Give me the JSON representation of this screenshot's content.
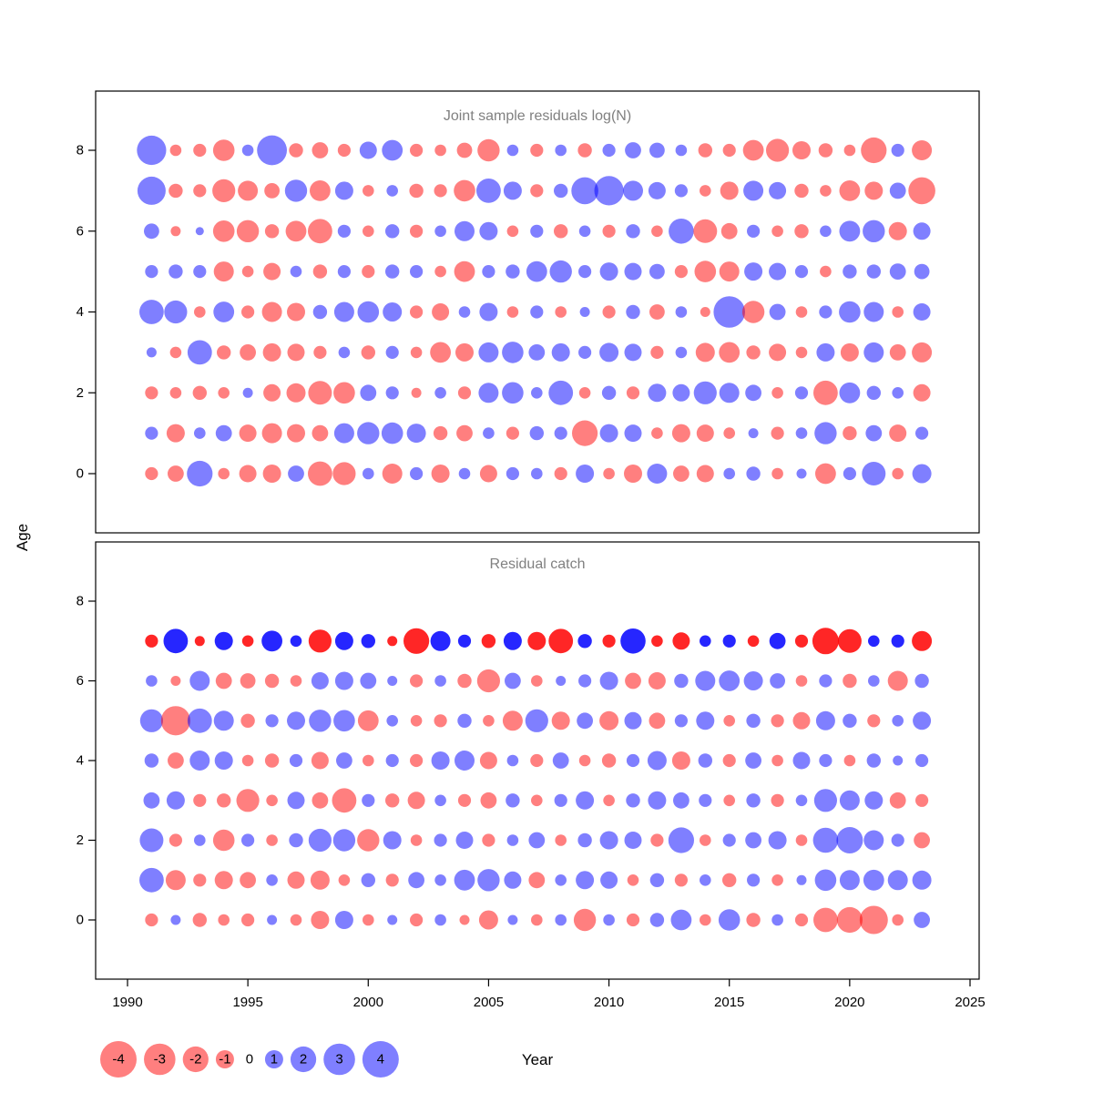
{
  "figure": {
    "background": "#ffffff",
    "axis_color": "#000000",
    "title_color": "#808080",
    "neg_color": "#ff0000",
    "pos_color": "#0000ff",
    "bubble_alpha": 0.5,
    "xlabel": "Year",
    "ylabel": "Age",
    "x_ticks": [
      1990,
      1995,
      2000,
      2005,
      2010,
      2015,
      2020,
      2025
    ],
    "y_ticks": [
      0,
      2,
      4,
      6,
      8
    ],
    "legend": {
      "values": [
        -4,
        -3,
        -2,
        -1,
        0,
        1,
        2,
        3,
        4
      ]
    }
  },
  "chart_data": [
    {
      "type": "bubble",
      "title": "Joint sample residuals log(N)",
      "xlabel": "Year",
      "ylabel": "Age",
      "xlim": [
        1989.5,
        2025.5
      ],
      "ylim": [
        -1.2,
        9.2
      ],
      "x": [
        1991,
        1992,
        1993,
        1994,
        1995,
        1996,
        1997,
        1998,
        1999,
        2000,
        2001,
        2002,
        2003,
        2004,
        2005,
        2006,
        2007,
        2008,
        2009,
        2010,
        2011,
        2012,
        2013,
        2014,
        2015,
        2016,
        2017,
        2018,
        2019,
        2020,
        2021,
        2022,
        2023
      ],
      "series": [
        {
          "age": 0,
          "values": [
            -0.5,
            -0.8,
            2.0,
            -0.4,
            -0.9,
            -1.0,
            0.8,
            -1.8,
            -1.6,
            0.4,
            -1.2,
            0.5,
            -1.0,
            0.4,
            -0.9,
            0.5,
            0.4,
            -0.5,
            1.0,
            -0.4,
            -1.0,
            1.2,
            -0.8,
            -0.9,
            0.4,
            0.6,
            -0.4,
            0.3,
            -1.3,
            0.5,
            1.7,
            -0.4,
            1.1
          ]
        },
        {
          "age": 1,
          "values": [
            0.5,
            -1.0,
            0.4,
            0.8,
            -0.9,
            -1.2,
            -1.0,
            -0.8,
            1.2,
            1.5,
            1.4,
            1.1,
            -0.6,
            -0.8,
            0.4,
            -0.5,
            0.6,
            0.5,
            -2.0,
            1.0,
            0.9,
            -0.4,
            -1.0,
            -0.9,
            -0.4,
            0.3,
            -0.5,
            0.4,
            1.5,
            -0.6,
            0.8,
            -0.9,
            0.5
          ]
        },
        {
          "age": 2,
          "values": [
            -0.5,
            -0.4,
            -0.6,
            -0.4,
            0.3,
            -0.9,
            -1.1,
            -1.7,
            -1.4,
            0.8,
            0.5,
            -0.3,
            0.4,
            -0.5,
            1.2,
            1.4,
            0.4,
            1.8,
            -0.4,
            0.6,
            -0.5,
            1.0,
            0.9,
            1.6,
            1.2,
            0.8,
            -0.4,
            0.5,
            -1.8,
            1.3,
            0.6,
            0.4,
            -0.9
          ]
        },
        {
          "age": 3,
          "values": [
            0.3,
            -0.4,
            1.8,
            -0.6,
            -0.8,
            -1.0,
            -0.9,
            -0.5,
            0.4,
            -0.6,
            0.5,
            -0.4,
            -1.3,
            -1.0,
            1.2,
            1.4,
            0.8,
            1.0,
            0.5,
            1.1,
            0.9,
            -0.5,
            0.4,
            -1.1,
            -1.3,
            -0.6,
            -0.9,
            -0.4,
            1.0,
            -1.0,
            1.2,
            -0.8,
            -1.2
          ]
        },
        {
          "age": 4,
          "values": [
            1.8,
            1.6,
            -0.4,
            1.3,
            -0.5,
            -1.2,
            -1.0,
            0.6,
            1.2,
            1.4,
            1.1,
            -0.5,
            -0.9,
            0.4,
            1.0,
            -0.4,
            0.5,
            -0.4,
            0.3,
            -0.5,
            0.6,
            -0.7,
            0.4,
            -0.3,
            3.0,
            -1.5,
            0.8,
            -0.4,
            0.5,
            1.4,
            1.2,
            -0.4,
            0.9
          ]
        },
        {
          "age": 5,
          "values": [
            0.5,
            0.6,
            0.5,
            -1.2,
            -0.4,
            -0.9,
            0.4,
            -0.6,
            0.5,
            -0.5,
            0.6,
            0.5,
            -0.4,
            -1.3,
            0.5,
            0.6,
            1.3,
            1.5,
            0.5,
            1.0,
            0.9,
            0.7,
            -0.5,
            -1.4,
            -1.2,
            1.0,
            0.9,
            0.5,
            -0.4,
            0.6,
            0.6,
            0.8,
            0.7
          ]
        },
        {
          "age": 6,
          "values": [
            0.7,
            -0.3,
            0.2,
            -1.4,
            -1.5,
            -0.6,
            -1.3,
            -1.8,
            0.5,
            -0.4,
            0.6,
            -0.5,
            0.4,
            1.2,
            1.0,
            -0.4,
            0.5,
            -0.6,
            0.4,
            -0.5,
            0.6,
            -0.4,
            1.9,
            -1.7,
            -0.8,
            0.5,
            -0.4,
            -0.6,
            0.4,
            1.3,
            1.5,
            -1.0,
            0.9
          ]
        },
        {
          "age": 7,
          "values": [
            2.4,
            -0.6,
            -0.5,
            -1.6,
            -1.2,
            -0.7,
            1.5,
            -1.3,
            1.0,
            -0.4,
            0.4,
            -0.6,
            -0.5,
            -1.4,
            1.8,
            1.0,
            -0.5,
            0.6,
            2.2,
            2.6,
            1.2,
            0.9,
            0.5,
            -0.4,
            -1.0,
            1.2,
            0.9,
            -0.6,
            -0.4,
            -1.3,
            -1.0,
            0.8,
            -2.2
          ]
        },
        {
          "age": 8,
          "values": [
            2.6,
            -0.4,
            -0.5,
            -1.4,
            0.4,
            2.7,
            -0.6,
            -0.8,
            -0.5,
            0.9,
            1.3,
            -0.5,
            -0.4,
            -0.7,
            -1.5,
            0.4,
            -0.5,
            0.4,
            -0.6,
            0.5,
            0.8,
            0.7,
            0.4,
            -0.6,
            -0.5,
            -1.3,
            -1.6,
            -1.0,
            -0.6,
            -0.4,
            -2.0,
            0.5,
            -1.2
          ]
        }
      ]
    },
    {
      "type": "bubble",
      "title": "Residual catch",
      "xlabel": "Year",
      "ylabel": "Age",
      "xlim": [
        1989.5,
        2025.5
      ],
      "ylim": [
        -1.2,
        9.2
      ],
      "x": [
        1991,
        1992,
        1993,
        1994,
        1995,
        1996,
        1997,
        1998,
        1999,
        2000,
        2001,
        2002,
        2003,
        2004,
        2005,
        2006,
        2007,
        2008,
        2009,
        2010,
        2011,
        2012,
        2013,
        2014,
        2015,
        2016,
        2017,
        2018,
        2019,
        2020,
        2021,
        2022,
        2023
      ],
      "series": [
        {
          "age": 0,
          "values": [
            -0.5,
            0.3,
            -0.6,
            -0.4,
            -0.5,
            0.3,
            -0.4,
            -1.0,
            1.0,
            -0.4,
            0.3,
            -0.5,
            0.4,
            -0.3,
            -1.1,
            0.3,
            -0.4,
            0.4,
            -1.5,
            0.4,
            -0.5,
            0.6,
            1.3,
            -0.4,
            1.4,
            -0.6,
            0.4,
            -0.5,
            -1.8,
            -2.0,
            -2.4,
            -0.4,
            0.8
          ]
        },
        {
          "age": 1,
          "values": [
            1.8,
            -1.2,
            -0.5,
            -1.0,
            -0.8,
            0.4,
            -0.9,
            -1.1,
            -0.4,
            0.6,
            -0.5,
            0.8,
            0.4,
            1.3,
            1.5,
            0.9,
            -0.8,
            0.4,
            1.0,
            0.9,
            -0.4,
            0.6,
            -0.5,
            0.4,
            -0.6,
            0.5,
            -0.4,
            0.3,
            1.4,
            1.2,
            1.3,
            1.2,
            1.1
          ]
        },
        {
          "age": 2,
          "values": [
            1.7,
            -0.5,
            0.4,
            -1.4,
            0.5,
            -0.4,
            0.6,
            1.6,
            1.5,
            -1.5,
            1.0,
            -0.4,
            0.5,
            0.9,
            -0.5,
            0.4,
            0.8,
            -0.4,
            0.6,
            1.0,
            0.9,
            -0.5,
            2.0,
            -0.4,
            0.5,
            0.8,
            1.0,
            -0.4,
            1.9,
            2.1,
            1.2,
            0.5,
            -0.8
          ]
        },
        {
          "age": 3,
          "values": [
            0.8,
            1.0,
            -0.5,
            -0.6,
            -1.6,
            -0.4,
            0.9,
            -0.8,
            -1.8,
            0.5,
            -0.6,
            -0.9,
            0.4,
            -0.5,
            -0.8,
            0.6,
            -0.4,
            0.5,
            1.0,
            -0.4,
            0.6,
            1.0,
            0.8,
            0.5,
            -0.4,
            0.6,
            -0.5,
            0.4,
            1.6,
            1.2,
            1.0,
            -0.8,
            -0.5
          ]
        },
        {
          "age": 4,
          "values": [
            0.6,
            -0.8,
            1.2,
            1.0,
            -0.4,
            -0.6,
            0.5,
            -0.9,
            0.8,
            -0.4,
            0.5,
            -0.5,
            1.0,
            1.2,
            -0.9,
            0.4,
            -0.5,
            0.8,
            -0.4,
            -0.6,
            0.5,
            1.1,
            -1.0,
            0.6,
            -0.5,
            0.8,
            -0.4,
            0.9,
            0.5,
            -0.4,
            0.6,
            0.3,
            0.5
          ]
        },
        {
          "age": 5,
          "values": [
            1.6,
            -2.6,
            1.8,
            1.2,
            -0.6,
            0.5,
            1.0,
            1.5,
            1.4,
            -1.3,
            0.4,
            -0.4,
            -0.5,
            0.6,
            -0.4,
            -1.2,
            1.6,
            -1.0,
            0.8,
            -1.1,
            0.9,
            -0.8,
            0.5,
            1.0,
            -0.4,
            0.6,
            -0.5,
            -0.9,
            1.1,
            0.6,
            -0.5,
            0.4,
            1.0
          ]
        },
        {
          "age": 6,
          "values": [
            0.4,
            -0.3,
            1.2,
            -0.8,
            -0.7,
            -0.6,
            -0.4,
            0.9,
            1.0,
            0.8,
            0.3,
            -0.5,
            0.4,
            -0.6,
            -1.6,
            0.8,
            -0.4,
            0.3,
            0.5,
            1.0,
            -0.8,
            -0.9,
            0.6,
            1.2,
            1.3,
            1.1,
            0.7,
            -0.4,
            0.5,
            -0.6,
            0.4,
            -1.2,
            0.6
          ]
        },
        {
          "age": 7,
          "alpha": 0.85,
          "values": [
            -0.5,
            1.8,
            -0.3,
            1.0,
            -0.4,
            1.3,
            0.4,
            -1.6,
            1.0,
            0.6,
            -0.3,
            -2.0,
            1.2,
            0.5,
            -0.6,
            1.0,
            -1.0,
            -1.8,
            0.6,
            -0.5,
            1.9,
            -0.4,
            -0.9,
            0.4,
            0.5,
            -0.4,
            0.8,
            -0.5,
            -2.1,
            -1.7,
            0.4,
            0.5,
            -1.2
          ]
        }
      ]
    }
  ]
}
